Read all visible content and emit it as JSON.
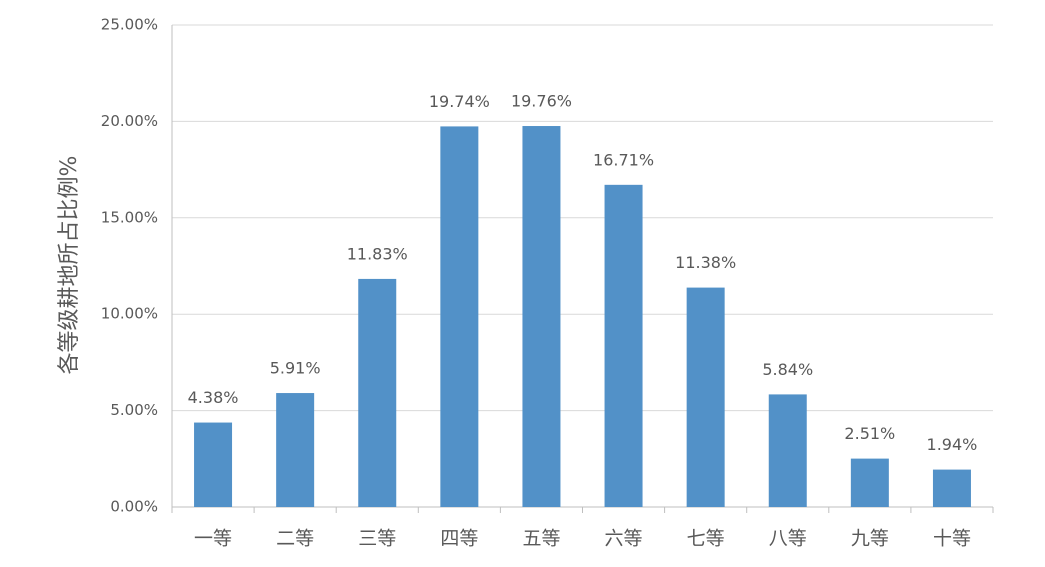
{
  "chart_data": {
    "type": "bar",
    "y_label": "各等级耕地所占比例%",
    "categories": [
      "一等",
      "二等",
      "三等",
      "四等",
      "五等",
      "六等",
      "七等",
      "八等",
      "九等",
      "十等"
    ],
    "values": [
      4.38,
      5.91,
      11.83,
      19.74,
      19.76,
      16.71,
      11.38,
      5.84,
      2.51,
      1.94
    ],
    "value_labels": [
      "4.38%",
      "5.91%",
      "11.83%",
      "19.74%",
      "19.76%",
      "16.71%",
      "11.38%",
      "5.84%",
      "2.51%",
      "1.94%"
    ],
    "color": "#5291c8",
    "ylim": [
      0,
      25
    ],
    "yticks": [
      {
        "value": 0,
        "label": "0.00%"
      },
      {
        "value": 5,
        "label": "5.00%"
      },
      {
        "value": 10,
        "label": "10.00%"
      },
      {
        "value": 15,
        "label": "15.00%"
      },
      {
        "value": 20,
        "label": "20.00%"
      },
      {
        "value": 25,
        "label": "25.00%"
      }
    ],
    "grid": true
  }
}
